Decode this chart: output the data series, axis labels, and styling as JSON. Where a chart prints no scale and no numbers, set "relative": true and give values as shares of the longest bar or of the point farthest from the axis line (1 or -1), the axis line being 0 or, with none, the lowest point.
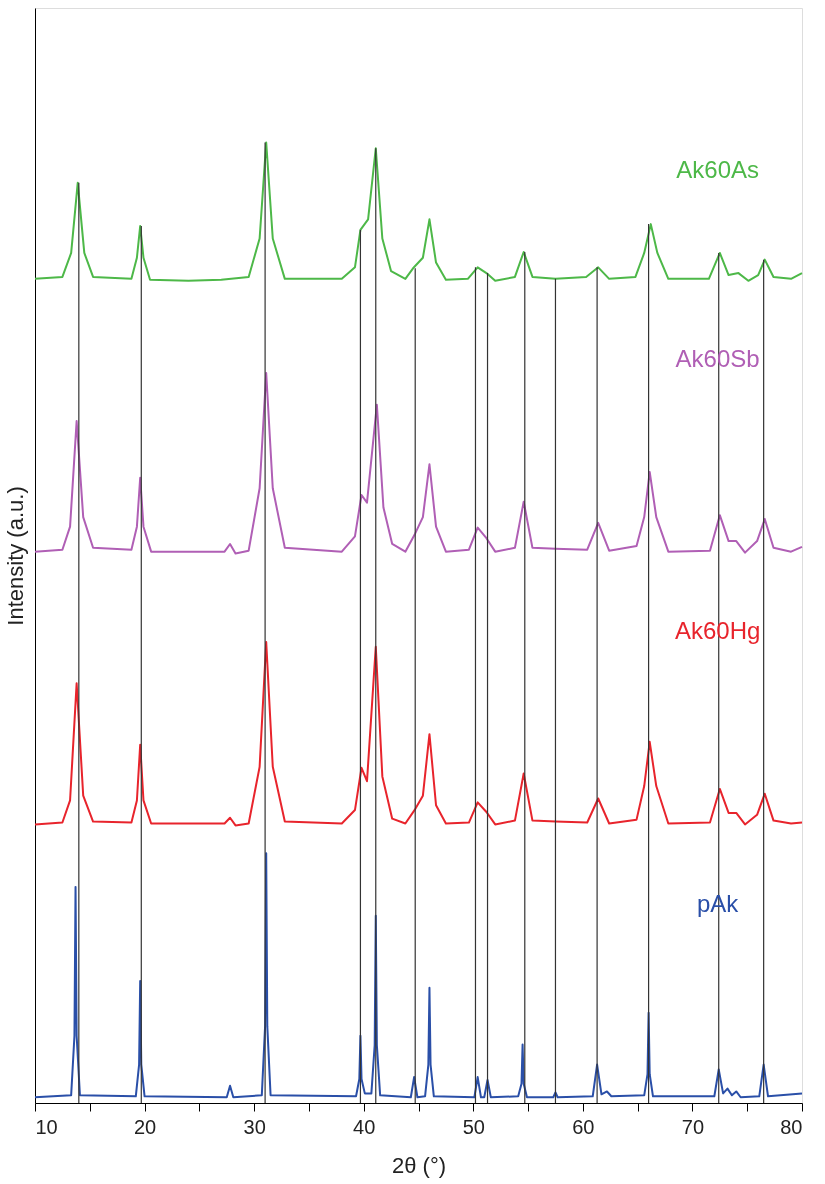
{
  "chart_data": {
    "type": "line",
    "relative": true,
    "xlabel": "2θ (°)",
    "ylabel": "Intensity (a.u.)",
    "xlim": [
      10,
      80
    ],
    "xticks": [
      10,
      {
        "value": 15,
        "label": null
      },
      20,
      {
        "value": 25,
        "label": null
      },
      30,
      {
        "value": 35,
        "label": null
      },
      40,
      {
        "value": 45,
        "label": null
      },
      50,
      {
        "value": 55,
        "label": null
      },
      60,
      {
        "value": 65,
        "label": null
      },
      70,
      {
        "value": 75,
        "label": null
      },
      80
    ],
    "series": [
      {
        "name": "Ak60As",
        "color": "#4db848",
        "x": [
          10,
          12.5,
          13.3,
          13.9,
          14.5,
          15.3,
          18.8,
          19.3,
          19.6,
          19.9,
          20.5,
          24,
          27,
          29.5,
          30.5,
          31.1,
          31.7,
          32.8,
          38,
          39.2,
          39.7,
          40.4,
          41.1,
          41.7,
          42.5,
          43.8,
          44.5,
          45.4,
          46.0,
          46.6,
          47.5,
          49.5,
          50.4,
          51.2,
          52.0,
          53.8,
          54.6,
          55.4,
          57.5,
          60.3,
          61.4,
          62.4,
          64.8,
          65.6,
          66.2,
          66.8,
          67.8,
          71.5,
          72.5,
          73.3,
          74.2,
          75.1,
          76.0,
          76.6,
          77.4,
          79,
          80
        ],
        "values": [
          0.858,
          0.86,
          0.885,
          0.958,
          0.885,
          0.86,
          0.858,
          0.88,
          0.913,
          0.88,
          0.857,
          0.856,
          0.857,
          0.86,
          0.9,
          1.0,
          0.9,
          0.858,
          0.858,
          0.87,
          0.909,
          0.92,
          0.994,
          0.9,
          0.866,
          0.858,
          0.869,
          0.88,
          0.92,
          0.875,
          0.857,
          0.858,
          0.87,
          0.864,
          0.856,
          0.86,
          0.886,
          0.86,
          0.858,
          0.86,
          0.87,
          0.858,
          0.86,
          0.885,
          0.915,
          0.885,
          0.858,
          0.858,
          0.885,
          0.862,
          0.864,
          0.856,
          0.862,
          0.878,
          0.86,
          0.858,
          0.864
        ]
      },
      {
        "name": "Ak60Sb",
        "color": "#b05fb5",
        "x": [
          10,
          12.5,
          13.2,
          13.8,
          14.4,
          15.3,
          18.8,
          19.3,
          19.6,
          19.9,
          20.6,
          27.3,
          27.8,
          28.3,
          29.5,
          30.5,
          31.1,
          31.7,
          32.8,
          38,
          39.2,
          39.8,
          40.3,
          41.2,
          41.8,
          42.6,
          43.8,
          44.7,
          45.4,
          46.0,
          46.6,
          47.5,
          49.6,
          50.4,
          51.2,
          52.0,
          53.8,
          54.6,
          55.4,
          57.5,
          60.4,
          61.4,
          62.4,
          64.9,
          65.6,
          66.1,
          66.7,
          67.8,
          71.6,
          72.5,
          73.3,
          74.0,
          74.8,
          75.9,
          76.6,
          77.4,
          79,
          80
        ],
        "values": [
          0.574,
          0.576,
          0.6,
          0.71,
          0.61,
          0.578,
          0.576,
          0.6,
          0.651,
          0.6,
          0.574,
          0.574,
          0.582,
          0.572,
          0.575,
          0.64,
          0.76,
          0.64,
          0.578,
          0.574,
          0.59,
          0.633,
          0.625,
          0.727,
          0.62,
          0.582,
          0.574,
          0.593,
          0.61,
          0.665,
          0.6,
          0.574,
          0.576,
          0.599,
          0.588,
          0.574,
          0.578,
          0.626,
          0.578,
          0.577,
          0.576,
          0.604,
          0.575,
          0.58,
          0.61,
          0.657,
          0.61,
          0.574,
          0.575,
          0.612,
          0.585,
          0.585,
          0.573,
          0.585,
          0.608,
          0.578,
          0.574,
          0.579
        ]
      },
      {
        "name": "Ak60Hg",
        "color": "#e8242c",
        "x": [
          10,
          12.5,
          13.2,
          13.8,
          14.4,
          15.3,
          18.8,
          19.3,
          19.6,
          19.9,
          20.6,
          27.3,
          27.8,
          28.3,
          29.5,
          30.5,
          31.1,
          31.7,
          32.8,
          38,
          39.2,
          39.8,
          40.3,
          41.1,
          41.7,
          42.6,
          43.8,
          44.7,
          45.4,
          46.0,
          46.6,
          47.5,
          49.6,
          50.4,
          51.2,
          52.0,
          53.8,
          54.6,
          55.4,
          57.5,
          60.4,
          61.4,
          62.4,
          64.9,
          65.6,
          66.1,
          66.7,
          67.8,
          71.6,
          72.5,
          73.3,
          74.0,
          74.8,
          75.9,
          76.6,
          77.4,
          79,
          80
        ],
        "values": [
          0.29,
          0.292,
          0.315,
          0.437,
          0.32,
          0.293,
          0.292,
          0.315,
          0.373,
          0.315,
          0.291,
          0.291,
          0.297,
          0.289,
          0.291,
          0.35,
          0.48,
          0.35,
          0.293,
          0.291,
          0.305,
          0.349,
          0.335,
          0.475,
          0.34,
          0.296,
          0.291,
          0.306,
          0.32,
          0.384,
          0.31,
          0.291,
          0.292,
          0.313,
          0.303,
          0.29,
          0.294,
          0.343,
          0.294,
          0.293,
          0.292,
          0.317,
          0.291,
          0.295,
          0.33,
          0.376,
          0.33,
          0.291,
          0.292,
          0.327,
          0.302,
          0.302,
          0.29,
          0.3,
          0.322,
          0.294,
          0.291,
          0.292
        ]
      },
      {
        "name": "pAk",
        "color": "#2a4fa8",
        "x": [
          10,
          13.3,
          13.6,
          13.7,
          13.8,
          14.1,
          19.2,
          19.5,
          19.6,
          19.7,
          20.0,
          27.5,
          27.8,
          28.1,
          30.7,
          31.0,
          31.1,
          31.2,
          31.5,
          39.3,
          39.6,
          39.7,
          39.8,
          40.1,
          40.7,
          41.0,
          41.1,
          41.2,
          41.5,
          44.3,
          44.6,
          44.9,
          45.6,
          45.9,
          46.0,
          46.1,
          46.4,
          50.1,
          50.4,
          50.7,
          51.0,
          51.3,
          51.6,
          54.1,
          54.4,
          54.5,
          54.6,
          54.9,
          57.3,
          57.5,
          57.7,
          60.9,
          61.3,
          61.7,
          62.2,
          62.6,
          65.6,
          65.9,
          66.0,
          66.1,
          66.4,
          72.0,
          72.4,
          72.8,
          73.2,
          73.6,
          74.0,
          74.4,
          76.1,
          76.5,
          76.9,
          80
        ],
        "values": [
          0.006,
          0.008,
          0.07,
          0.225,
          0.07,
          0.008,
          0.007,
          0.04,
          0.127,
          0.04,
          0.007,
          0.006,
          0.018,
          0.006,
          0.008,
          0.08,
          0.26,
          0.08,
          0.008,
          0.007,
          0.025,
          0.07,
          0.025,
          0.01,
          0.01,
          0.06,
          0.195,
          0.06,
          0.008,
          0.006,
          0.027,
          0.006,
          0.007,
          0.04,
          0.12,
          0.04,
          0.007,
          0.006,
          0.027,
          0.006,
          0.006,
          0.024,
          0.006,
          0.007,
          0.02,
          0.061,
          0.02,
          0.006,
          0.006,
          0.011,
          0.006,
          0.007,
          0.04,
          0.009,
          0.012,
          0.007,
          0.008,
          0.03,
          0.094,
          0.03,
          0.007,
          0.007,
          0.035,
          0.01,
          0.015,
          0.008,
          0.012,
          0.006,
          0.007,
          0.04,
          0.007,
          0.01
        ]
      }
    ],
    "ref_lines": [
      {
        "axis": "x",
        "value": 14.0,
        "color": "#333333"
      },
      {
        "axis": "x",
        "value": 19.7,
        "color": "#333333"
      },
      {
        "axis": "x",
        "value": 31.0,
        "color": "#333333"
      },
      {
        "axis": "x",
        "value": 39.7,
        "color": "#333333"
      },
      {
        "axis": "x",
        "value": 41.1,
        "color": "#333333"
      },
      {
        "axis": "x",
        "value": 44.7,
        "color": "#333333"
      },
      {
        "axis": "x",
        "value": 50.2,
        "color": "#333333"
      },
      {
        "axis": "x",
        "value": 51.3,
        "color": "#333333"
      },
      {
        "axis": "x",
        "value": 54.7,
        "color": "#333333"
      },
      {
        "axis": "x",
        "value": 57.5,
        "color": "#333333"
      },
      {
        "axis": "x",
        "value": 61.3,
        "color": "#333333"
      },
      {
        "axis": "x",
        "value": 66.0,
        "color": "#333333"
      },
      {
        "axis": "x",
        "value": 72.4,
        "color": "#333333"
      },
      {
        "axis": "x",
        "value": 76.5,
        "color": "#333333"
      }
    ]
  }
}
